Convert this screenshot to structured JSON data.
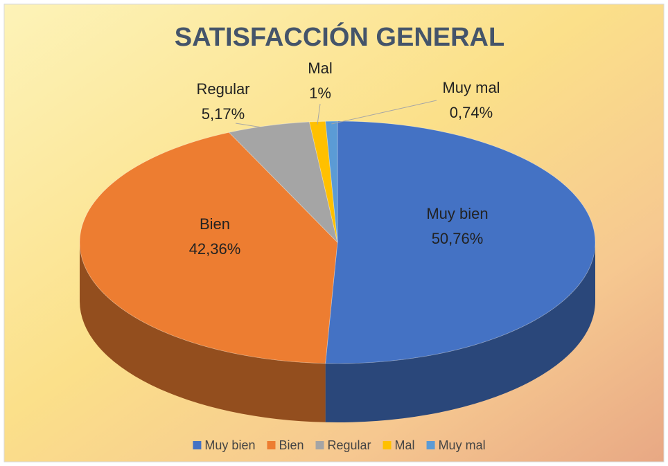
{
  "chart_data": {
    "type": "pie",
    "title": "SATISFACCIÓN GENERAL",
    "categories": [
      "Muy bien",
      "Bien",
      "Regular",
      "Mal",
      "Muy mal"
    ],
    "values": [
      50.76,
      42.36,
      5.17,
      1,
      0.74
    ],
    "value_labels": [
      "50,76%",
      "42,36%",
      "5,17%",
      "1%",
      "0,74%"
    ],
    "colors": [
      "#4472c4",
      "#ed7d31",
      "#a5a5a5",
      "#ffc000",
      "#5b9bd5"
    ],
    "legend": "bottom"
  }
}
